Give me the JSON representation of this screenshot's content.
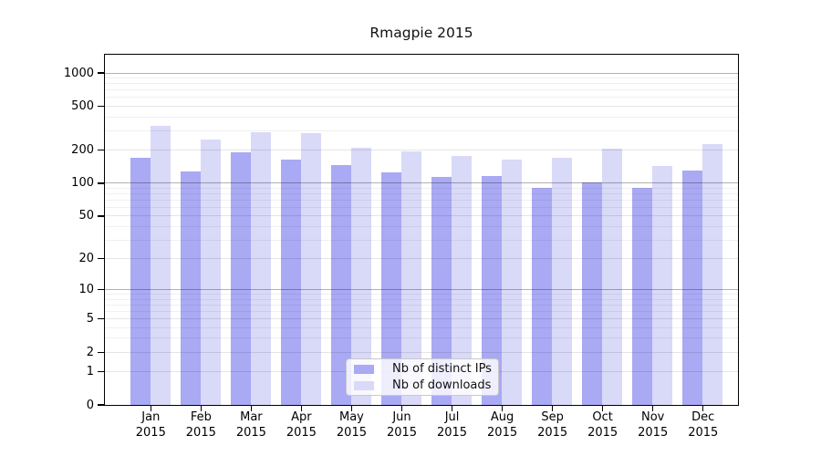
{
  "chart_data": {
    "type": "bar",
    "title": "Rmagpie 2015",
    "categories": [
      "Jan",
      "Feb",
      "Mar",
      "Apr",
      "May",
      "Jun",
      "Jul",
      "Aug",
      "Sep",
      "Oct",
      "Nov",
      "Dec"
    ],
    "category_year": "2015",
    "series": [
      {
        "name": "Nb of distinct IPs",
        "color": "#a9a9f4",
        "values": [
          170,
          127,
          190,
          165,
          147,
          126,
          114,
          117,
          90,
          102,
          91,
          131
        ]
      },
      {
        "name": "Nb of downloads",
        "color": "#d9d9f8",
        "values": [
          330,
          250,
          290,
          284,
          210,
          195,
          178,
          165,
          170,
          207,
          144,
          228
        ]
      }
    ],
    "yscale": "log1p",
    "ylim": [
      0,
      1435
    ],
    "ytick_values": [
      0,
      1,
      2,
      5,
      10,
      20,
      50,
      100,
      200,
      500,
      1000
    ],
    "ytick_labels": [
      "0",
      "1",
      "2",
      "5",
      "10",
      "20",
      "50",
      "100",
      "200",
      "500",
      "1000"
    ],
    "grid": {
      "orientation": "horizontal",
      "minor": true
    },
    "legend": {
      "position": "lower center",
      "entries": [
        "Nb of distinct IPs",
        "Nb of downloads"
      ]
    },
    "colors": {
      "frame": "#000000",
      "background": "#ffffff"
    }
  }
}
